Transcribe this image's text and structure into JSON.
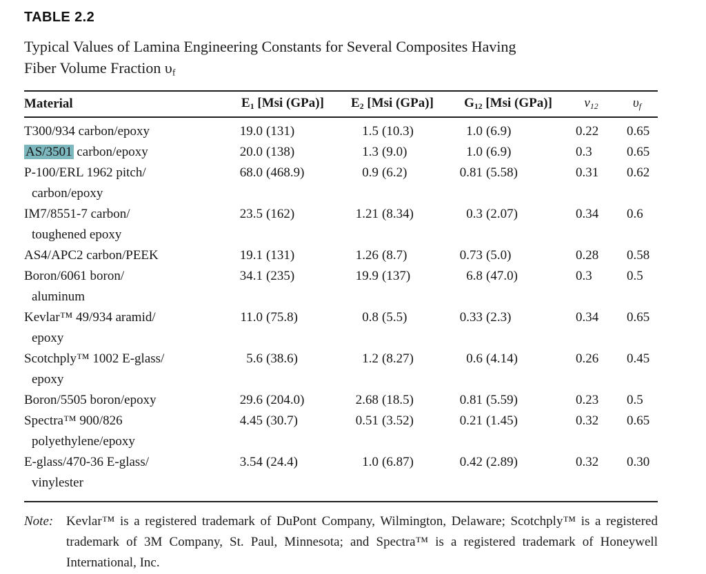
{
  "header": {
    "table_label": "TABLE 2.2",
    "subtitle_line1": "Typical Values of Lamina Engineering Constants for Several Composites Having",
    "subtitle_line2_text": "Fiber Volume Fraction ",
    "subtitle_symbol": "υ",
    "subtitle_symbol_sub": "f"
  },
  "table": {
    "highlight_color": "#7db7be",
    "columns": [
      {
        "key": "material",
        "base": "Material",
        "sub": "",
        "rest": "",
        "greek": false
      },
      {
        "key": "e1",
        "base": "E",
        "sub": "1",
        "rest": " [Msi (GPa)]",
        "greek": false
      },
      {
        "key": "e2",
        "base": "E",
        "sub": "2",
        "rest": " [Msi (GPa)]",
        "greek": false
      },
      {
        "key": "g12",
        "base": "G",
        "sub": "12",
        "rest": " [Msi (GPa)]",
        "greek": false
      },
      {
        "key": "nu12",
        "base": "ν",
        "sub": "12",
        "rest": "",
        "greek": true
      },
      {
        "key": "vf",
        "base": "υ",
        "sub": "f",
        "rest": "",
        "greek": true
      }
    ],
    "col_widths": {
      "material": 300,
      "e1": 150,
      "e2": 168,
      "g12": 168,
      "nu12": 73,
      "vf": 60
    },
    "rows": [
      {
        "material_lines": [
          "T300/934 carbon/epoxy"
        ],
        "highlight": "",
        "e1": "19.0 (131)",
        "e2": "1.5 (10.3)",
        "g12": "1.0 (6.9)",
        "nu12": "0.22",
        "vf": "0.65"
      },
      {
        "material_lines": [
          "AS/3501 carbon/epoxy"
        ],
        "highlight": "AS/3501",
        "e1": "20.0 (138)",
        "e2": "1.3 (9.0)",
        "g12": "1.0 (6.9)",
        "nu12": "0.3",
        "vf": "0.65"
      },
      {
        "material_lines": [
          "P-100/ERL 1962 pitch/",
          "carbon/epoxy"
        ],
        "highlight": "",
        "e1": "68.0 (468.9)",
        "e2": "0.9 (6.2)",
        "g12": "0.81 (5.58)",
        "nu12": "0.31",
        "vf": "0.62"
      },
      {
        "material_lines": [
          "IM7/8551-7 carbon/",
          "toughened epoxy"
        ],
        "highlight": "",
        "e1": "23.5 (162)",
        "e2": "1.21 (8.34)",
        "g12": "0.3 (2.07)",
        "nu12": "0.34",
        "vf": "0.6"
      },
      {
        "material_lines": [
          "AS4/APC2 carbon/PEEK"
        ],
        "highlight": "",
        "e1": "19.1 (131)",
        "e2": "1.26 (8.7)",
        "g12": "0.73 (5.0)",
        "nu12": "0.28",
        "vf": "0.58"
      },
      {
        "material_lines": [
          "Boron/6061 boron/",
          "aluminum"
        ],
        "highlight": "",
        "e1": "34.1 (235)",
        "e2": "19.9 (137)",
        "g12": "6.8 (47.0)",
        "nu12": "0.3",
        "vf": "0.5"
      },
      {
        "material_lines": [
          "Kevlar™ 49/934 aramid/",
          "epoxy"
        ],
        "highlight": "",
        "e1": "11.0 (75.8)",
        "e2": "0.8 (5.5)",
        "g12": "0.33 (2.3)",
        "nu12": "0.34",
        "vf": "0.65"
      },
      {
        "material_lines": [
          "Scotchply™ 1002 E-glass/",
          "epoxy"
        ],
        "highlight": "",
        "e1": "5.6 (38.6)",
        "e2": "1.2 (8.27)",
        "g12": "0.6 (4.14)",
        "nu12": "0.26",
        "vf": "0.45"
      },
      {
        "material_lines": [
          "Boron/5505 boron/epoxy"
        ],
        "highlight": "",
        "e1": "29.6 (204.0)",
        "e2": "2.68 (18.5)",
        "g12": "0.81 (5.59)",
        "nu12": "0.23",
        "vf": "0.5"
      },
      {
        "material_lines": [
          "Spectra™ 900/826",
          "polyethylene/epoxy"
        ],
        "highlight": "",
        "e1": "4.45 (30.7)",
        "e2": "0.51 (3.52)",
        "g12": "0.21 (1.45)",
        "nu12": "0.32",
        "vf": "0.65"
      },
      {
        "material_lines": [
          "E-glass/470-36 E-glass/",
          "vinylester"
        ],
        "highlight": "",
        "e1": "3.54 (24.4)",
        "e2": "1.0 (6.87)",
        "g12": "0.42 (2.89)",
        "nu12": "0.32",
        "vf": "0.30"
      }
    ]
  },
  "note": {
    "label": "Note:",
    "text": "Kevlar™ is a registered trademark of DuPont Company, Wilmington, Delaware; Scotchply™ is a registered trademark of 3M Company, St. Paul, Minnesota; and Spectra™ is a registered trademark of Honeywell International, Inc."
  }
}
